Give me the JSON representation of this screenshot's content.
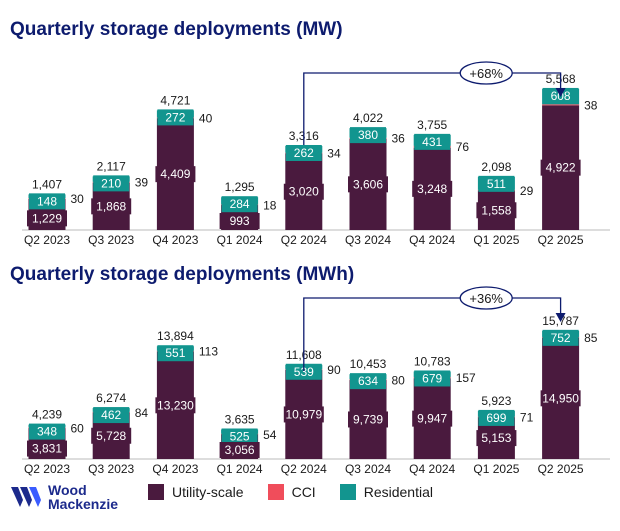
{
  "colors": {
    "utility": "#4a1a3e",
    "cci": "#f04d5b",
    "residential": "#12958f",
    "title": "#0d1b6e",
    "arrow": "#0d1b6e",
    "logo": "#1c2a8c"
  },
  "chart_data": [
    {
      "type": "bar",
      "stacked": true,
      "title": "Quarterly storage deployments (MW)",
      "categories": [
        "Q2 2023",
        "Q3 2023",
        "Q4 2023",
        "Q1 2024",
        "Q2 2024",
        "Q3 2024",
        "Q4 2024",
        "Q1 2025",
        "Q2 2025"
      ],
      "series": [
        {
          "name": "Utility-scale",
          "values": [
            1229,
            1868,
            4409,
            993,
            3020,
            3606,
            3248,
            1558,
            4922
          ]
        },
        {
          "name": "CCI",
          "values": [
            30,
            39,
            40,
            18,
            34,
            36,
            76,
            29,
            38
          ]
        },
        {
          "name": "Residential",
          "values": [
            148,
            210,
            272,
            284,
            262,
            380,
            431,
            511,
            608
          ]
        }
      ],
      "totals": [
        1407,
        2117,
        4721,
        1295,
        3316,
        4022,
        3755,
        2098,
        5568
      ],
      "labels": {
        "utility": [
          "1,229",
          "1,868",
          "4,409",
          "993",
          "3,020",
          "3,606",
          "3,248",
          "1,558",
          "4,922"
        ],
        "cci": [
          "30",
          "39",
          "40",
          "18",
          "34",
          "36",
          "76",
          "29",
          "38"
        ],
        "residential": [
          "148",
          "210",
          "272",
          "284",
          "262",
          "380",
          "431",
          "511",
          "608"
        ],
        "totals": [
          "1,407",
          "2,117",
          "4,721",
          "1,295",
          "3,316",
          "4,022",
          "3,755",
          "2,098",
          "5,568"
        ]
      },
      "annotation": {
        "text": "+68%",
        "from": "Q2 2024",
        "to": "Q2 2025"
      },
      "ylim": [
        0,
        6000
      ]
    },
    {
      "type": "bar",
      "stacked": true,
      "title": "Quarterly storage deployments (MWh)",
      "categories": [
        "Q2 2023",
        "Q3 2023",
        "Q4 2023",
        "Q1 2024",
        "Q2 2024",
        "Q3 2024",
        "Q4 2024",
        "Q1 2025",
        "Q2 2025"
      ],
      "series": [
        {
          "name": "Utility-scale",
          "values": [
            3831,
            5728,
            13230,
            3056,
            10979,
            9739,
            9947,
            5153,
            14950
          ]
        },
        {
          "name": "CCI",
          "values": [
            60,
            84,
            113,
            54,
            90,
            80,
            157,
            71,
            85
          ]
        },
        {
          "name": "Residential",
          "values": [
            348,
            462,
            551,
            525,
            539,
            634,
            679,
            699,
            752
          ]
        }
      ],
      "totals": [
        4239,
        6274,
        13894,
        3635,
        11608,
        10453,
        10783,
        5923,
        15787
      ],
      "labels": {
        "utility": [
          "3,831",
          "5,728",
          "13,230",
          "3,056",
          "10,979",
          "9,739",
          "9,947",
          "5,153",
          "14,950"
        ],
        "cci": [
          "60",
          "84",
          "113",
          "54",
          "90",
          "80",
          "157",
          "71",
          "85"
        ],
        "residential": [
          "348",
          "462",
          "551",
          "525",
          "539",
          "634",
          "679",
          "699",
          "752"
        ],
        "totals": [
          "4,239",
          "6,274",
          "13,894",
          "3,635",
          "11,608",
          "10,453",
          "10,783",
          "5,923",
          "15,787"
        ]
      },
      "annotation": {
        "text": "+36%",
        "from": "Q2 2024",
        "to": "Q2 2025"
      },
      "ylim": [
        0,
        17000
      ]
    }
  ],
  "legend": {
    "utility": "Utility-scale",
    "cci": "CCI",
    "residential": "Residential"
  },
  "logo": {
    "line1": "Wood",
    "line2": "Mackenzie"
  }
}
